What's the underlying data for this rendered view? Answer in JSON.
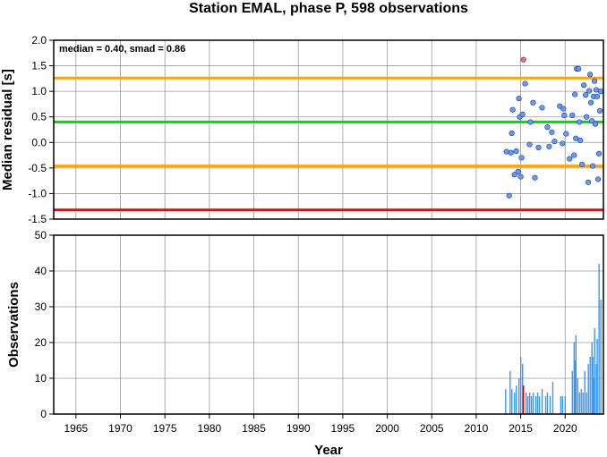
{
  "chart_data": [
    {
      "type": "scatter",
      "title": "Station EMAL, phase P, 598 observations",
      "ylabel": "Median residual [s]",
      "xlim": [
        1962.5,
        2024.3
      ],
      "ylim": [
        -1.5,
        2.0
      ],
      "yticks": [
        -1.5,
        -1.0,
        -0.5,
        0.0,
        0.5,
        1.0,
        1.5,
        2.0
      ],
      "ytick_labels": [
        "-1.5",
        "-1.0",
        "-0.5",
        "0.0",
        "0.5",
        "1.0",
        "1.5",
        "2.0"
      ],
      "grid": true,
      "annotation": "median = 0.40, smad = 0.86",
      "reference_lines": [
        {
          "name": "median",
          "y": 0.4,
          "color": "#00dd00"
        },
        {
          "name": "upper",
          "y": 1.26,
          "color": "#ffa500"
        },
        {
          "name": "lower",
          "y": -0.46,
          "color": "#ffa500"
        },
        {
          "name": "limit",
          "y": -1.32,
          "color": "#ff0000"
        }
      ],
      "series": [
        {
          "color": "#6699ff",
          "points": [
            {
              "x": 2013.4,
              "y": -0.18
            },
            {
              "x": 2013.7,
              "y": -1.04
            },
            {
              "x": 2013.9,
              "y": -0.2
            },
            {
              "x": 2014.0,
              "y": 0.18
            },
            {
              "x": 2014.1,
              "y": 0.64
            },
            {
              "x": 2014.3,
              "y": -0.63
            },
            {
              "x": 2014.5,
              "y": -0.17
            },
            {
              "x": 2014.7,
              "y": -0.57
            },
            {
              "x": 2014.8,
              "y": 0.86
            },
            {
              "x": 2014.9,
              "y": 0.5
            },
            {
              "x": 2015.0,
              "y": -0.67
            },
            {
              "x": 2015.1,
              "y": -0.3
            },
            {
              "x": 2015.2,
              "y": 0.55
            },
            {
              "x": 2015.5,
              "y": 1.15
            },
            {
              "x": 2016.0,
              "y": -0.04
            },
            {
              "x": 2016.1,
              "y": 0.4
            },
            {
              "x": 2016.4,
              "y": 0.78
            },
            {
              "x": 2016.6,
              "y": -0.69
            },
            {
              "x": 2017.0,
              "y": -0.1
            },
            {
              "x": 2017.4,
              "y": 0.68
            },
            {
              "x": 2018.0,
              "y": 0.3
            },
            {
              "x": 2018.2,
              "y": -0.08
            },
            {
              "x": 2018.5,
              "y": 0.2
            },
            {
              "x": 2018.8,
              "y": 0.02
            },
            {
              "x": 2019.4,
              "y": 0.71
            },
            {
              "x": 2019.7,
              "y": -0.02
            },
            {
              "x": 2019.8,
              "y": 0.66
            },
            {
              "x": 2019.9,
              "y": 0.53
            },
            {
              "x": 2020.1,
              "y": 0.17
            },
            {
              "x": 2020.5,
              "y": -0.32
            },
            {
              "x": 2020.8,
              "y": 0.53
            },
            {
              "x": 2021.0,
              "y": -0.25
            },
            {
              "x": 2021.1,
              "y": 0.94
            },
            {
              "x": 2021.2,
              "y": 0.08
            },
            {
              "x": 2021.3,
              "y": 1.44
            },
            {
              "x": 2021.5,
              "y": 1.44
            },
            {
              "x": 2021.6,
              "y": 0.4
            },
            {
              "x": 2021.7,
              "y": 0.04
            },
            {
              "x": 2021.9,
              "y": -0.43
            },
            {
              "x": 2022.1,
              "y": 1.12
            },
            {
              "x": 2022.3,
              "y": 0.93
            },
            {
              "x": 2022.4,
              "y": 0.5
            },
            {
              "x": 2022.6,
              "y": -0.78
            },
            {
              "x": 2022.7,
              "y": 1.01
            },
            {
              "x": 2022.8,
              "y": 1.33
            },
            {
              "x": 2022.9,
              "y": 0.78
            },
            {
              "x": 2023.0,
              "y": 0.42
            },
            {
              "x": 2023.1,
              "y": -0.46
            },
            {
              "x": 2023.2,
              "y": 0.9
            },
            {
              "x": 2023.3,
              "y": 1.2
            },
            {
              "x": 2023.4,
              "y": 0.36
            },
            {
              "x": 2023.5,
              "y": 1.03
            },
            {
              "x": 2023.6,
              "y": 0.9
            },
            {
              "x": 2023.7,
              "y": -0.72
            },
            {
              "x": 2023.8,
              "y": -0.22
            },
            {
              "x": 2023.9,
              "y": 0.62
            },
            {
              "x": 2024.0,
              "y": 1.0
            }
          ]
        },
        {
          "color": "#ff6666",
          "points": [
            {
              "x": 2015.3,
              "y": 1.62
            }
          ]
        }
      ]
    },
    {
      "type": "bar",
      "xlabel": "Year",
      "ylabel": "Observations",
      "xlim": [
        1962.5,
        2024.3
      ],
      "ylim": [
        0,
        50
      ],
      "xticks": [
        1965,
        1970,
        1975,
        1980,
        1985,
        1990,
        1995,
        2000,
        2005,
        2010,
        2015,
        2020
      ],
      "xtick_labels": [
        "1965",
        "1970",
        "1975",
        "1980",
        "1985",
        "1990",
        "1995",
        "2000",
        "2005",
        "2010",
        "2015",
        "2020"
      ],
      "yticks": [
        0,
        10,
        20,
        30,
        40,
        50
      ],
      "ytick_labels": [
        "0",
        "10",
        "20",
        "30",
        "40",
        "50"
      ],
      "grid": true,
      "series": [
        {
          "color": "#3399ff",
          "points": [
            {
              "x": 2013.3,
              "y": 7
            },
            {
              "x": 2013.8,
              "y": 12
            },
            {
              "x": 2014.0,
              "y": 7
            },
            {
              "x": 2014.3,
              "y": 6
            },
            {
              "x": 2014.5,
              "y": 8
            },
            {
              "x": 2014.8,
              "y": 10
            },
            {
              "x": 2015.0,
              "y": 16
            },
            {
              "x": 2015.2,
              "y": 14
            },
            {
              "x": 2015.6,
              "y": 6
            },
            {
              "x": 2015.8,
              "y": 5
            },
            {
              "x": 2016.0,
              "y": 6
            },
            {
              "x": 2016.2,
              "y": 5
            },
            {
              "x": 2016.4,
              "y": 6
            },
            {
              "x": 2016.7,
              "y": 5
            },
            {
              "x": 2016.9,
              "y": 6
            },
            {
              "x": 2017.1,
              "y": 5
            },
            {
              "x": 2017.4,
              "y": 7
            },
            {
              "x": 2017.8,
              "y": 5
            },
            {
              "x": 2018.0,
              "y": 6
            },
            {
              "x": 2018.3,
              "y": 5
            },
            {
              "x": 2018.6,
              "y": 9
            },
            {
              "x": 2019.5,
              "y": 5
            },
            {
              "x": 2019.7,
              "y": 5
            },
            {
              "x": 2020.0,
              "y": 5
            },
            {
              "x": 2020.8,
              "y": 12
            },
            {
              "x": 2021.0,
              "y": 20
            },
            {
              "x": 2021.1,
              "y": 15
            },
            {
              "x": 2021.2,
              "y": 22
            },
            {
              "x": 2021.4,
              "y": 10
            },
            {
              "x": 2021.6,
              "y": 6
            },
            {
              "x": 2021.8,
              "y": 7
            },
            {
              "x": 2022.0,
              "y": 6
            },
            {
              "x": 2022.2,
              "y": 12
            },
            {
              "x": 2022.4,
              "y": 6
            },
            {
              "x": 2022.6,
              "y": 14
            },
            {
              "x": 2022.8,
              "y": 16
            },
            {
              "x": 2023.0,
              "y": 20
            },
            {
              "x": 2023.1,
              "y": 16
            },
            {
              "x": 2023.2,
              "y": 10
            },
            {
              "x": 2023.3,
              "y": 24
            },
            {
              "x": 2023.5,
              "y": 14
            },
            {
              "x": 2023.6,
              "y": 21
            },
            {
              "x": 2023.8,
              "y": 42
            },
            {
              "x": 2024.0,
              "y": 32
            }
          ]
        },
        {
          "color": "#cc0000",
          "points": [
            {
              "x": 2015.3,
              "y": 8
            }
          ]
        }
      ]
    }
  ]
}
